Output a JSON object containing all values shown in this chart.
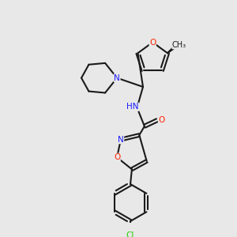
{
  "bg_color": "#e8e8e8",
  "fig_width": 3.0,
  "fig_height": 3.0,
  "dpi": 100,
  "bond_color": "#1a1a1a",
  "bond_lw": 1.5,
  "atom_colors": {
    "N": "#1a1aff",
    "O": "#ff2200",
    "Cl": "#22cc00",
    "C": "#1a1a1a"
  },
  "font_size": 7.5
}
